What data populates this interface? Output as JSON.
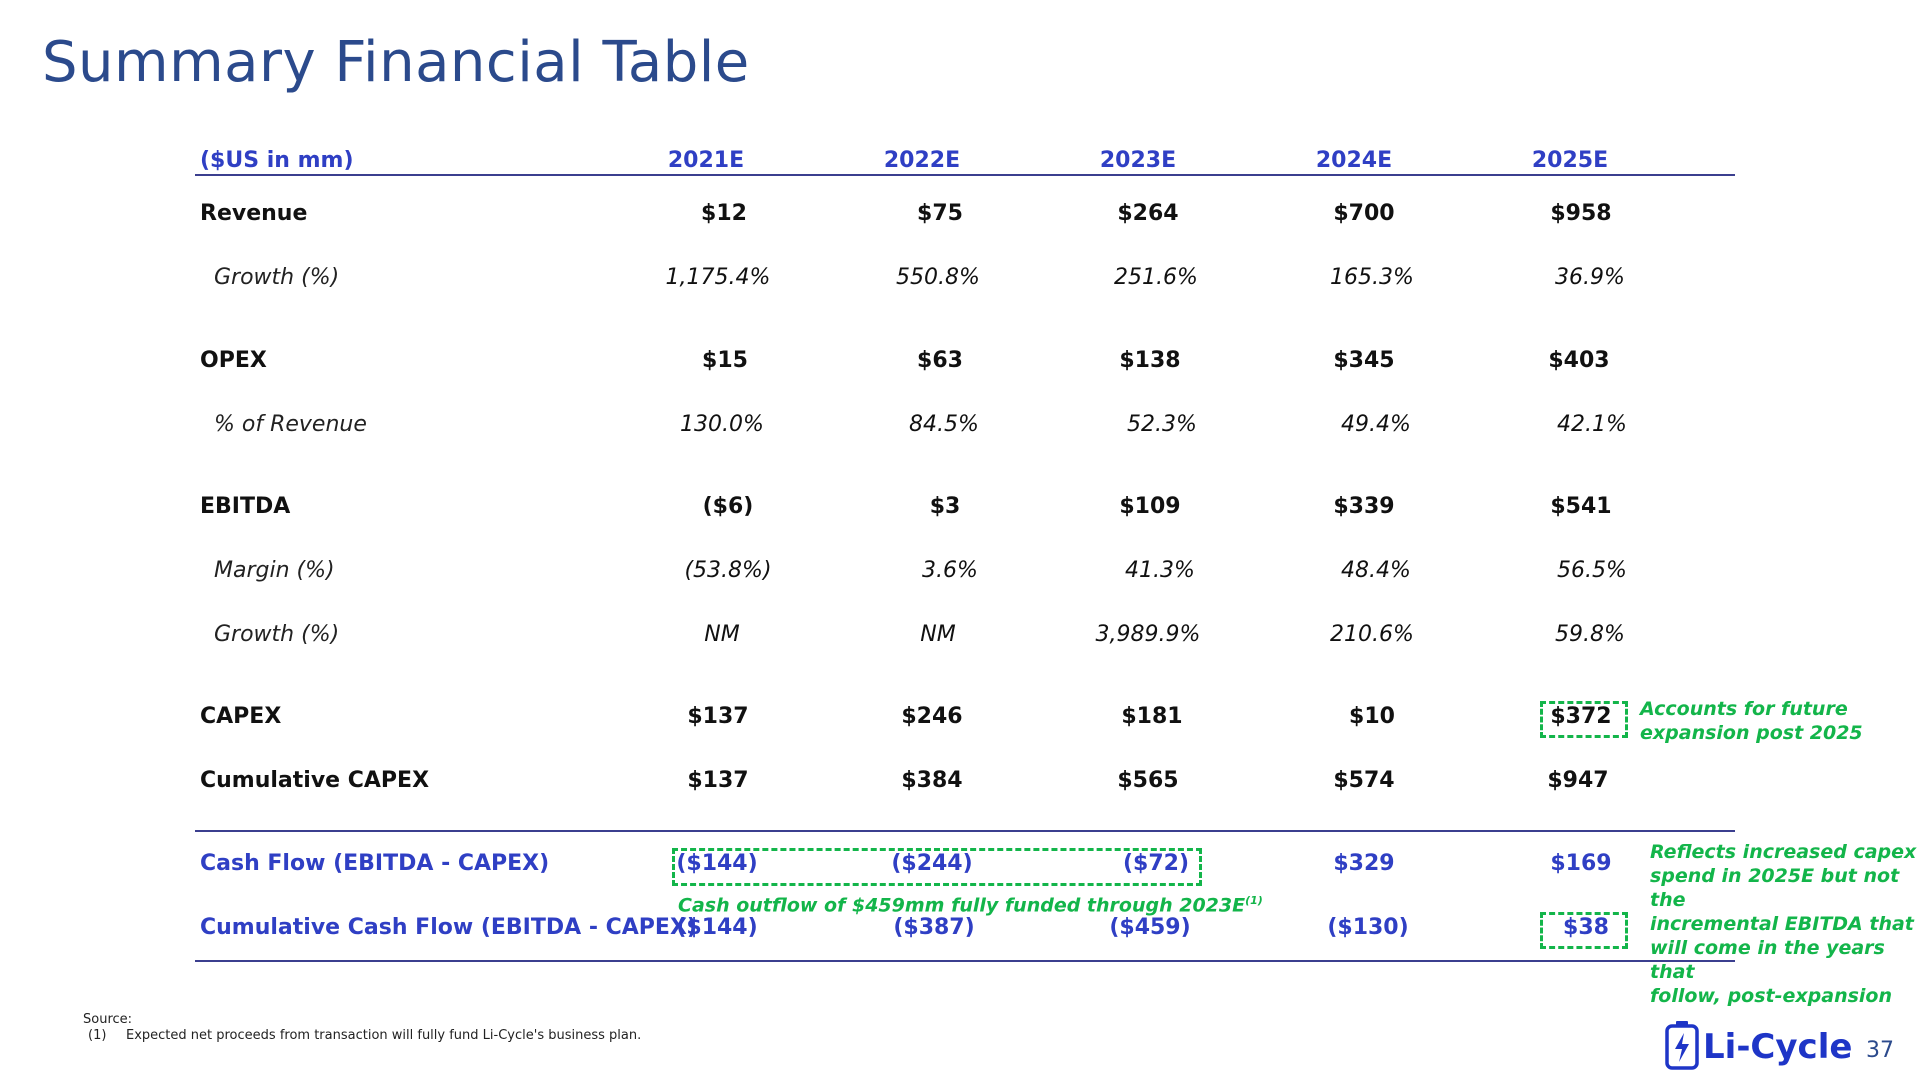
{
  "title": "Summary Financial Table",
  "header": {
    "units": "($US in mm)",
    "years": [
      "2021E",
      "2022E",
      "2023E",
      "2024E",
      "2025E"
    ]
  },
  "rows": {
    "revenue": {
      "label": "Revenue",
      "values": [
        "$12",
        "$75",
        "$264",
        "$700",
        "$958"
      ]
    },
    "revenue_growth": {
      "label": "Growth (%)",
      "values": [
        "1,175.4%",
        "550.8%",
        "251.6%",
        "165.3%",
        "36.9%"
      ]
    },
    "opex": {
      "label": "OPEX",
      "values": [
        "$15",
        "$63",
        "$138",
        "$345",
        "$403"
      ]
    },
    "opex_pct": {
      "label": "% of Revenue",
      "values": [
        "130.0%",
        "84.5%",
        "52.3%",
        "49.4%",
        "42.1%"
      ]
    },
    "ebitda": {
      "label": "EBITDA",
      "values": [
        "($6)",
        "$3",
        "$109",
        "$339",
        "$541"
      ]
    },
    "ebitda_margin": {
      "label": "Margin (%)",
      "values": [
        "(53.8%)",
        "3.6%",
        "41.3%",
        "48.4%",
        "56.5%"
      ]
    },
    "ebitda_growth": {
      "label": "Growth (%)",
      "values": [
        "NM",
        "NM",
        "3,989.9%",
        "210.6%",
        "59.8%"
      ]
    },
    "capex": {
      "label": "CAPEX",
      "values": [
        "$137",
        "$246",
        "$181",
        "$10",
        "$372"
      ]
    },
    "cum_capex": {
      "label": "Cumulative CAPEX",
      "values": [
        "$137",
        "$384",
        "$565",
        "$574",
        "$947"
      ]
    },
    "cash_flow": {
      "label": "Cash Flow (EBITDA - CAPEX)",
      "values": [
        "($144)",
        "($244)",
        "($72)",
        "$329",
        "$169"
      ]
    },
    "cum_cash_flow": {
      "label": "Cumulative Cash Flow (EBITDA - CAPEX)",
      "values": [
        "($144)",
        "($387)",
        "($459)",
        "($130)",
        "$38"
      ]
    }
  },
  "annotations": {
    "capex_note_line1": "Accounts for future",
    "capex_note_line2": "expansion post 2025",
    "outflow_note": "Cash outflow of $459mm fully funded through 2023E",
    "outflow_note_sup": "(1)",
    "cf_note": [
      "Reflects increased capex",
      "spend in 2025E but not the",
      "incremental EBITDA that",
      "will come in the years that",
      "follow, post-expansion"
    ]
  },
  "footer": {
    "source_label": "Source:",
    "footnote_num": "(1)",
    "footnote_text": "Expected net proceeds from transaction will fully fund Li-Cycle's business plan."
  },
  "logo_text": "Li-Cycle",
  "page_number": "37",
  "colors": {
    "title": "#2b4a8c",
    "header": "#2f3fc4",
    "accent_green": "#13b54a",
    "logo": "#1e35c7"
  }
}
